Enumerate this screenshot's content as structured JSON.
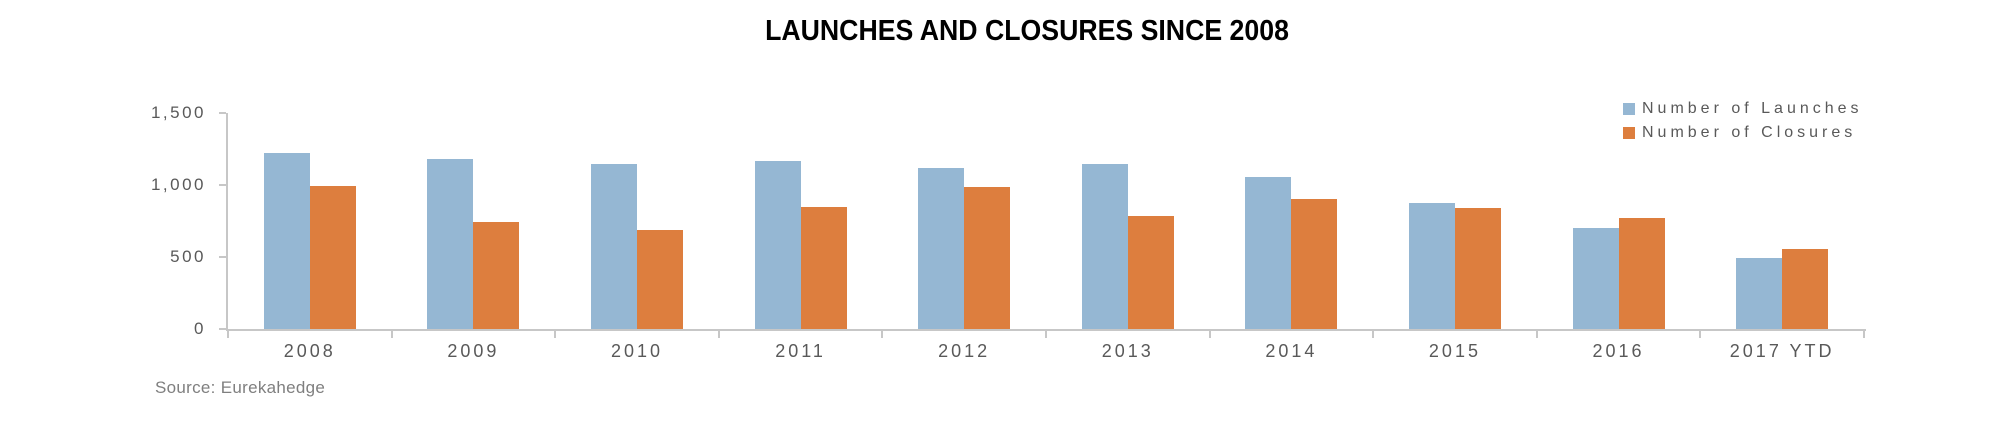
{
  "title": "LAUNCHES AND CLOSURES SINCE 2008",
  "source": "Source: Eurekahedge",
  "colors": {
    "launches_blue": "#95B7D3",
    "closures_orange": "#DD7E3E",
    "axis_gray": "#C7C7C7",
    "tick_text_gray": "#595959",
    "source_text_gray": "#7F7F7F",
    "title_black": "#000000"
  },
  "legend": {
    "position": "top-right",
    "items": [
      {
        "label": "Number of Launches",
        "color": "#95B7D3"
      },
      {
        "label": "Number of Closures",
        "color": "#DD7E3E"
      }
    ]
  },
  "chart_data": {
    "type": "bar",
    "title": "LAUNCHES AND CLOSURES SINCE 2008",
    "xlabel": "",
    "ylabel": "",
    "categories": [
      "2008",
      "2009",
      "2010",
      "2011",
      "2012",
      "2013",
      "2014",
      "2015",
      "2016",
      "2017 YTD"
    ],
    "series": [
      {
        "name": "Number of Launches",
        "color": "#95B7D3",
        "values": [
          1225,
          1180,
          1145,
          1165,
          1115,
          1145,
          1055,
          875,
          700,
          490
        ]
      },
      {
        "name": "Number of Closures",
        "color": "#DD7E3E",
        "values": [
          990,
          740,
          685,
          845,
          985,
          785,
          905,
          840,
          770,
          555
        ]
      }
    ],
    "ylim": [
      0,
      1500
    ],
    "y_ticks": [
      "0",
      "500",
      "1,000",
      "1,500"
    ],
    "y_tick_values": [
      0,
      500,
      1000,
      1500
    ],
    "grid": false,
    "legend_position": "top-right",
    "source": "Source: Eurekahedge"
  }
}
